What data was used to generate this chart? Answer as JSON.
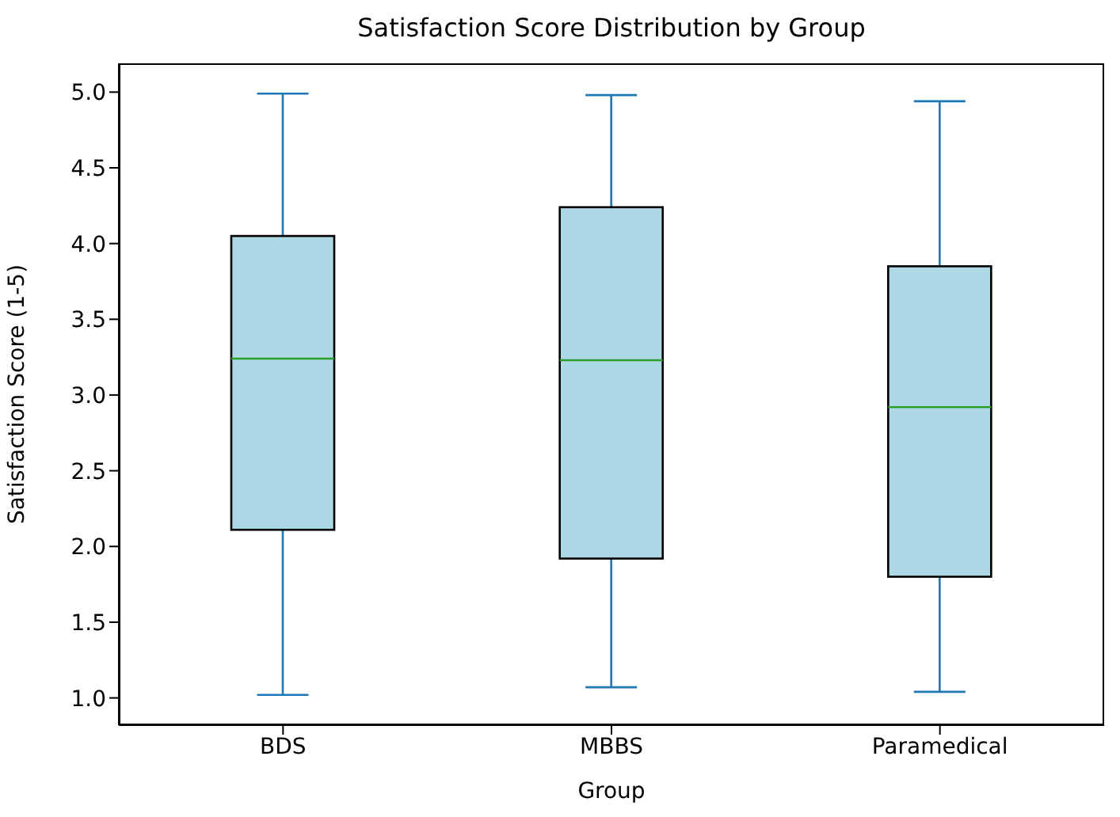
{
  "chart_data": {
    "type": "box",
    "title": "Satisfaction Score Distribution by Group",
    "xlabel": "Group",
    "ylabel": "Satisfaction Score (1-5)",
    "categories": [
      "BDS",
      "MBBS",
      "Paramedical"
    ],
    "color": "#add8e6",
    "boxes": [
      {
        "low": 1.02,
        "q1": 2.11,
        "median": 3.24,
        "q3": 4.05,
        "high": 4.99
      },
      {
        "low": 1.07,
        "q1": 1.92,
        "median": 3.23,
        "q3": 4.24,
        "high": 4.98
      },
      {
        "low": 1.04,
        "q1": 1.8,
        "median": 2.92,
        "q3": 3.85,
        "high": 4.94
      }
    ],
    "ylim": [
      0.82,
      5.19
    ],
    "yticks": [
      {
        "value": 1,
        "label": "1.0"
      },
      {
        "value": 1.5,
        "label": "1.5"
      },
      {
        "value": 2,
        "label": "2.0"
      },
      {
        "value": 2.5,
        "label": "2.5"
      },
      {
        "value": 3,
        "label": "3.0"
      },
      {
        "value": 3.5,
        "label": "3.5"
      },
      {
        "value": 4,
        "label": "4.0"
      },
      {
        "value": 4.5,
        "label": "4.5"
      },
      {
        "value": 5,
        "label": "5.0"
      }
    ],
    "grid": false,
    "legend": false
  }
}
